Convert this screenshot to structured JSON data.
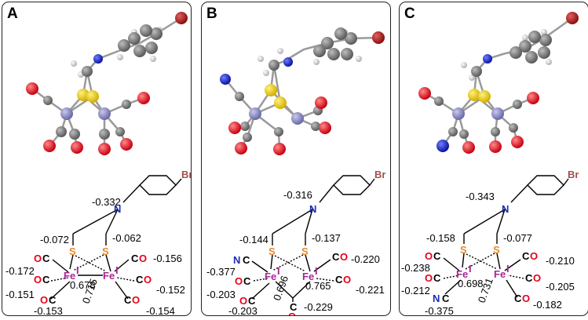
{
  "panels": [
    {
      "id": "A",
      "label": "A",
      "scheme": {
        "n_charge": "-0.332",
        "s_left_charge": "-0.072",
        "s_right_charge": "-0.062",
        "fe_left_charge": "0.678",
        "fe_right_charge": "0.715",
        "co_charges": [
          "-0.172",
          "-0.151",
          "-0.153",
          "-0.156",
          "-0.152",
          "-0.154"
        ]
      }
    },
    {
      "id": "B",
      "label": "B",
      "scheme": {
        "n_charge": "-0.316",
        "s_left_charge": "-0.144",
        "s_right_charge": "-0.137",
        "fe_left_charge": "0.696",
        "fe_right_charge": "0.765",
        "cn_charge": "-0.377",
        "co_charges": [
          "-0.203",
          "-0.203",
          "-0.220",
          "-0.221",
          "-0.229"
        ]
      }
    },
    {
      "id": "C",
      "label": "C",
      "scheme": {
        "n_charge": "-0.343",
        "s_left_charge": "-0.158",
        "s_right_charge": "-0.077",
        "fe_left_charge": "0.698",
        "fe_right_charge": "0.731",
        "cn_charge": "-0.375",
        "co_charges": [
          "-0.238",
          "-0.212",
          "-0.210",
          "-0.205",
          "-0.182"
        ]
      }
    }
  ],
  "atoms": {
    "oxygen": "O",
    "carbon": "C",
    "sulfur": "S",
    "nitrogen": "N",
    "iron": "Fe",
    "iron_oxidation": "I",
    "bromine": "Br"
  },
  "colors": {
    "oxygen": "#e8001c",
    "sulfur": "#e88a2a",
    "nitrogen": "#1c2bbb",
    "iron": "#aa2596",
    "bromine": "#a0504e",
    "model_carbon": "#7d7d7d",
    "model_iron": "#8a8ab8",
    "model_sulfur": "#e6c700"
  }
}
